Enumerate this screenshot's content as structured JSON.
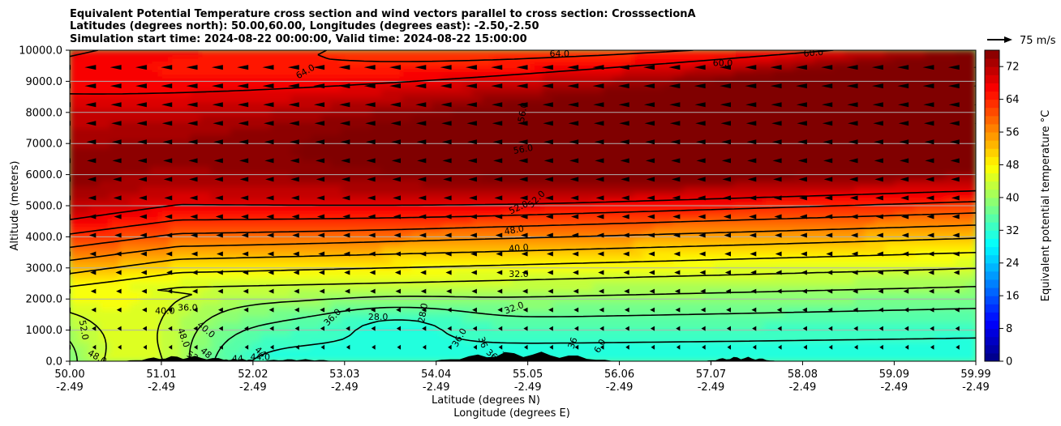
{
  "chart_data": {
    "type": "heatmap",
    "title_lines": [
      "Equivalent Potential Temperature cross section and wind vectors parallel to cross section: CrosssectionA",
      "Latitudes (degrees north): 50.00,60.00, Longitudes (degrees east): -2.50,-2.50",
      "Simulation start time: 2024-08-22 00:00:00, Valid time: 2024-08-22 15:00:00"
    ],
    "ylabel": "Altitude (meters)",
    "xlabel_lat": "Latitude (degrees N)",
    "xlabel_lon": "Longitude (degrees E)",
    "colorbar_label": "Equivalent potential temperature $^\\circ$C",
    "colorbar_label_display": "Equivalent potential temperature °C",
    "ylim": [
      0,
      10000
    ],
    "xlim": [
      50.0,
      59.99
    ],
    "y_ticks": [
      {
        "value": 0,
        "label": "0.0"
      },
      {
        "value": 1000,
        "label": "1000.0"
      },
      {
        "value": 2000,
        "label": "2000.0"
      },
      {
        "value": 3000,
        "label": "3000.0"
      },
      {
        "value": 4000,
        "label": "4000.0"
      },
      {
        "value": 5000,
        "label": "5000.0"
      },
      {
        "value": 6000,
        "label": "6000.0"
      },
      {
        "value": 7000,
        "label": "7000.0"
      },
      {
        "value": 8000,
        "label": "8000.0"
      },
      {
        "value": 9000,
        "label": "9000.0"
      },
      {
        "value": 10000,
        "label": "10000.0"
      }
    ],
    "x_ticks": [
      {
        "value": 50.0,
        "lat": "50.00",
        "lon": "-2.49"
      },
      {
        "value": 51.01,
        "lat": "51.01",
        "lon": "-2.49"
      },
      {
        "value": 52.02,
        "lat": "52.02",
        "lon": "-2.49"
      },
      {
        "value": 53.03,
        "lat": "53.03",
        "lon": "-2.49"
      },
      {
        "value": 54.04,
        "lat": "54.04",
        "lon": "-2.49"
      },
      {
        "value": 55.05,
        "lat": "55.05",
        "lon": "-2.49"
      },
      {
        "value": 56.06,
        "lat": "56.06",
        "lon": "-2.49"
      },
      {
        "value": 57.07,
        "lat": "57.07",
        "lon": "-2.49"
      },
      {
        "value": 58.08,
        "lat": "58.08",
        "lon": "-2.49"
      },
      {
        "value": 59.09,
        "lat": "59.09",
        "lon": "-2.49"
      },
      {
        "value": 59.99,
        "lat": "59.99",
        "lon": "-2.49"
      }
    ],
    "colorbar": {
      "range": [
        0,
        76
      ],
      "ticks": [
        {
          "value": 0,
          "label": "0"
        },
        {
          "value": 8,
          "label": "8"
        },
        {
          "value": 16,
          "label": "16"
        },
        {
          "value": 24,
          "label": "24"
        },
        {
          "value": 32,
          "label": "32"
        },
        {
          "value": 40,
          "label": "40"
        },
        {
          "value": 48,
          "label": "48"
        },
        {
          "value": 56,
          "label": "56"
        },
        {
          "value": 64,
          "label": "64"
        },
        {
          "value": 72,
          "label": "72"
        }
      ]
    },
    "quiver_key": {
      "label": "75 m/s",
      "speed": 75
    },
    "grid": true,
    "contour_levels": [
      28,
      32,
      36,
      40,
      44,
      48,
      52,
      56,
      60,
      64,
      68
    ],
    "contour_labels": [
      {
        "text": "64.0",
        "x": 52.6,
        "y": 9300,
        "rot": -30
      },
      {
        "text": "64.0",
        "x": 55.4,
        "y": 9870,
        "rot": 0
      },
      {
        "text": "60.0",
        "x": 57.2,
        "y": 9570,
        "rot": 0
      },
      {
        "text": "60.0",
        "x": 58.2,
        "y": 9900,
        "rot": -5
      },
      {
        "text": "56.0",
        "x": 55.0,
        "y": 8000,
        "rot": -80
      },
      {
        "text": "56.0",
        "x": 55.0,
        "y": 6800,
        "rot": -10
      },
      {
        "text": "52.0",
        "x": 54.95,
        "y": 4930,
        "rot": -25
      },
      {
        "text": "52.0",
        "x": 55.15,
        "y": 5200,
        "rot": -45
      },
      {
        "text": "48.0",
        "x": 54.9,
        "y": 4200,
        "rot": -10
      },
      {
        "text": "40.0",
        "x": 54.95,
        "y": 3620,
        "rot": -5
      },
      {
        "text": "32.0",
        "x": 54.95,
        "y": 2780,
        "rot": 0
      },
      {
        "text": "32.0",
        "x": 54.9,
        "y": 1700,
        "rot": -20
      },
      {
        "text": "36.0",
        "x": 51.3,
        "y": 1700,
        "rot": 0
      },
      {
        "text": "40.0",
        "x": 51.05,
        "y": 1600,
        "rot": 0
      },
      {
        "text": "28.0",
        "x": 53.4,
        "y": 1400,
        "rot": 0
      },
      {
        "text": "28.0",
        "x": 53.9,
        "y": 1550,
        "rot": -80
      },
      {
        "text": "36.0",
        "x": 52.9,
        "y": 1400,
        "rot": -45
      },
      {
        "text": "40.0",
        "x": 51.5,
        "y": 1000,
        "rot": 40
      },
      {
        "text": "48.0",
        "x": 51.25,
        "y": 750,
        "rot": 70
      },
      {
        "text": "48",
        "x": 51.5,
        "y": 250,
        "rot": 40
      },
      {
        "text": "52",
        "x": 51.35,
        "y": 150,
        "rot": 30
      },
      {
        "text": "52.0",
        "x": 50.15,
        "y": 1000,
        "rot": 80
      },
      {
        "text": "48.0",
        "x": 50.3,
        "y": 120,
        "rot": 30
      },
      {
        "text": "44",
        "x": 51.85,
        "y": 60,
        "rot": 0
      },
      {
        "text": "44.0",
        "x": 52.1,
        "y": 120,
        "rot": 0
      },
      {
        "text": "44",
        "x": 52.1,
        "y": 280,
        "rot": 40
      },
      {
        "text": "36.0",
        "x": 54.3,
        "y": 750,
        "rot": -60
      },
      {
        "text": "36",
        "x": 54.55,
        "y": 600,
        "rot": 70
      },
      {
        "text": "36",
        "x": 54.65,
        "y": 200,
        "rot": 40
      },
      {
        "text": "36",
        "x": 54.8,
        "y": 120,
        "rot": 30
      },
      {
        "text": "36",
        "x": 55.55,
        "y": 580,
        "rot": -70
      },
      {
        "text": "6.0",
        "x": 55.85,
        "y": 480,
        "rot": -60
      }
    ]
  },
  "colors": {
    "axis": "#000000",
    "grid": "#b0b0b0",
    "terrain": "#000000"
  }
}
